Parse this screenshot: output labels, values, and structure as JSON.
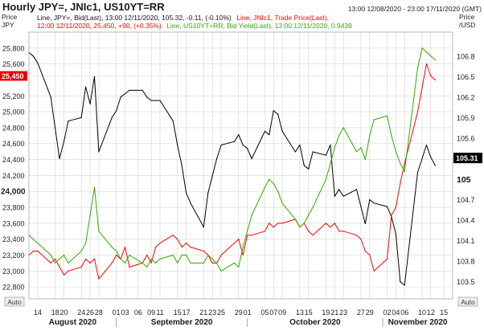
{
  "header": {
    "title": "Hourly JPY=, JNIc1, US10YT=RR",
    "date_range": "13:00 12/08/2020 - 23:00 17/11/2020 (GMT)"
  },
  "legend": {
    "row1_series1": "Line, JPY=, Bid(Last), 13:00 12/11/2020, 105.32, -0.11, (-0.10%)",
    "row1_series2": "Line, JNIc1, Trade Price(Last),",
    "row2_series2_values": "12:00 12/11/2020, 25,450, +90, (+0.35%)",
    "row2_series3": "Line, US10YT=RR, Bid Yield(Last), 13:00 12/11/2020, 0.9439"
  },
  "left_axis": {
    "header": "Price\nJPY",
    "ticks": [
      "25,800",
      "25,600",
      "25,450",
      "25,200",
      "25,000",
      "24,800",
      "24,600",
      "24,400",
      "24,200",
      "24,000",
      "23,800",
      "23,600",
      "23,400",
      "23,200",
      "23,000",
      "22,800"
    ],
    "highlight_label": "25,450",
    "bold_label": "24,000"
  },
  "right_axis": {
    "header": "Price\n/USD",
    "ticks": [
      "106.8",
      "106.5",
      "106.2",
      "105.9",
      "105.6",
      "104.7",
      "104.4",
      "104.1",
      "103.8",
      "103.5"
    ],
    "current_label": "105.31",
    "bold_label": "105"
  },
  "x_axis": {
    "day_ticks": [
      "14",
      "18",
      "20",
      "24",
      "26",
      "28",
      "01",
      "03",
      "06",
      "09",
      "11",
      "15",
      "17",
      "21",
      "23",
      "25",
      "29",
      "01",
      "05",
      "07",
      "09",
      "13",
      "15",
      "19",
      "21",
      "23",
      "27",
      "29",
      "02",
      "04",
      "06",
      "10",
      "12",
      "15"
    ],
    "months": [
      "August 2020",
      "September 2020",
      "October 2020",
      "November 2020"
    ],
    "auto_left": "Auto",
    "auto_right": "Auto"
  },
  "colors": {
    "jpy": "#000000",
    "nikkei": "#ff0000",
    "us10y": "#33aa00",
    "grid": "#d4d4d4",
    "current_label_bg": "#000000",
    "highlight_label_bg": "#e8000b"
  },
  "chart_data": {
    "type": "line",
    "title": "Hourly JPY=, JNIc1, US10YT=RR",
    "xlabel": "",
    "x_range": [
      "2020-08-12",
      "2020-11-17"
    ],
    "left_ylabel": "Price JPY",
    "left_ylim": [
      22650,
      26000
    ],
    "right_ylabel": "Price /USD",
    "right_ylim": [
      103.25,
      107.15
    ],
    "grid": true,
    "legend_position": "top-left",
    "series": [
      {
        "name": "JPY=",
        "axis": "right",
        "color": "#000000",
        "points": [
          [
            "2020-08-12",
            106.85
          ],
          [
            "2020-08-13",
            106.8
          ],
          [
            "2020-08-14",
            106.7
          ],
          [
            "2020-08-17",
            106.2
          ],
          [
            "2020-08-18",
            105.75
          ],
          [
            "2020-08-19",
            105.3
          ],
          [
            "2020-08-20",
            105.55
          ],
          [
            "2020-08-21",
            105.85
          ],
          [
            "2020-08-24",
            105.9
          ],
          [
            "2020-08-25",
            106.35
          ],
          [
            "2020-08-26",
            106.1
          ],
          [
            "2020-08-27",
            106.5
          ],
          [
            "2020-08-28",
            105.4
          ],
          [
            "2020-08-31",
            105.9
          ],
          [
            "2020-09-01",
            106.0
          ],
          [
            "2020-09-02",
            106.2
          ],
          [
            "2020-09-03",
            106.25
          ],
          [
            "2020-09-04",
            106.3
          ],
          [
            "2020-09-07",
            106.3
          ],
          [
            "2020-09-08",
            106.2
          ],
          [
            "2020-09-09",
            106.15
          ],
          [
            "2020-09-10",
            106.15
          ],
          [
            "2020-09-11",
            106.15
          ],
          [
            "2020-09-14",
            105.85
          ],
          [
            "2020-09-15",
            105.5
          ],
          [
            "2020-09-16",
            105.2
          ],
          [
            "2020-09-17",
            104.8
          ],
          [
            "2020-09-18",
            104.65
          ],
          [
            "2020-09-21",
            104.3
          ],
          [
            "2020-09-22",
            104.8
          ],
          [
            "2020-09-23",
            105.05
          ],
          [
            "2020-09-24",
            105.3
          ],
          [
            "2020-09-25",
            105.5
          ],
          [
            "2020-09-28",
            105.55
          ],
          [
            "2020-09-29",
            105.65
          ],
          [
            "2020-09-30",
            105.5
          ],
          [
            "2020-10-01",
            105.45
          ],
          [
            "2020-10-02",
            105.3
          ],
          [
            "2020-10-05",
            105.7
          ],
          [
            "2020-10-06",
            105.65
          ],
          [
            "2020-10-07",
            106.0
          ],
          [
            "2020-10-08",
            105.95
          ],
          [
            "2020-10-09",
            105.7
          ],
          [
            "2020-10-12",
            105.4
          ],
          [
            "2020-10-13",
            105.5
          ],
          [
            "2020-10-14",
            105.2
          ],
          [
            "2020-10-15",
            105.15
          ],
          [
            "2020-10-16",
            105.4
          ],
          [
            "2020-10-19",
            105.35
          ],
          [
            "2020-10-20",
            105.5
          ],
          [
            "2020-10-21",
            104.75
          ],
          [
            "2020-10-22",
            104.85
          ],
          [
            "2020-10-23",
            104.75
          ],
          [
            "2020-10-26",
            104.85
          ],
          [
            "2020-10-27",
            104.6
          ],
          [
            "2020-10-28",
            104.35
          ],
          [
            "2020-10-29",
            104.7
          ],
          [
            "2020-10-30",
            104.65
          ],
          [
            "2020-11-02",
            104.6
          ],
          [
            "2020-11-03",
            104.45
          ],
          [
            "2020-11-04",
            104.2
          ],
          [
            "2020-11-05",
            103.5
          ],
          [
            "2020-11-06",
            103.45
          ],
          [
            "2020-11-09",
            105.1
          ],
          [
            "2020-11-10",
            105.3
          ],
          [
            "2020-11-11",
            105.5
          ],
          [
            "2020-11-12",
            105.32
          ],
          [
            "2020-11-13",
            105.2
          ]
        ]
      },
      {
        "name": "JNIc1",
        "axis": "left",
        "color": "#ff0000",
        "points": [
          [
            "2020-08-12",
            23200
          ],
          [
            "2020-08-13",
            23250
          ],
          [
            "2020-08-14",
            23250
          ],
          [
            "2020-08-17",
            23100
          ],
          [
            "2020-08-18",
            23150
          ],
          [
            "2020-08-19",
            23050
          ],
          [
            "2020-08-20",
            22950
          ],
          [
            "2020-08-21",
            23000
          ],
          [
            "2020-08-24",
            23050
          ],
          [
            "2020-08-25",
            23150
          ],
          [
            "2020-08-26",
            23100
          ],
          [
            "2020-08-27",
            23150
          ],
          [
            "2020-08-28",
            22900
          ],
          [
            "2020-08-31",
            23100
          ],
          [
            "2020-09-01",
            23200
          ],
          [
            "2020-09-02",
            23150
          ],
          [
            "2020-09-03",
            23300
          ],
          [
            "2020-09-04",
            23050
          ],
          [
            "2020-09-07",
            23100
          ],
          [
            "2020-09-08",
            23200
          ],
          [
            "2020-09-09",
            23100
          ],
          [
            "2020-09-10",
            23300
          ],
          [
            "2020-09-11",
            23350
          ],
          [
            "2020-09-14",
            23450
          ],
          [
            "2020-09-15",
            23400
          ],
          [
            "2020-09-16",
            23300
          ],
          [
            "2020-09-17",
            23350
          ],
          [
            "2020-09-18",
            23300
          ],
          [
            "2020-09-21",
            23250
          ],
          [
            "2020-09-22",
            23200
          ],
          [
            "2020-09-23",
            23100
          ],
          [
            "2020-09-24",
            23100
          ],
          [
            "2020-09-25",
            23200
          ],
          [
            "2020-09-28",
            23350
          ],
          [
            "2020-09-29",
            23400
          ],
          [
            "2020-09-30",
            23200
          ],
          [
            "2020-10-01",
            23450
          ],
          [
            "2020-10-02",
            23450
          ],
          [
            "2020-10-05",
            23500
          ],
          [
            "2020-10-06",
            23600
          ],
          [
            "2020-10-07",
            23550
          ],
          [
            "2020-10-08",
            23600
          ],
          [
            "2020-10-09",
            23600
          ],
          [
            "2020-10-12",
            23650
          ],
          [
            "2020-10-13",
            23550
          ],
          [
            "2020-10-14",
            23600
          ],
          [
            "2020-10-15",
            23500
          ],
          [
            "2020-10-16",
            23450
          ],
          [
            "2020-10-19",
            23600
          ],
          [
            "2020-10-20",
            23550
          ],
          [
            "2020-10-21",
            23600
          ],
          [
            "2020-10-22",
            23500
          ],
          [
            "2020-10-23",
            23500
          ],
          [
            "2020-10-26",
            23450
          ],
          [
            "2020-10-27",
            23400
          ],
          [
            "2020-10-28",
            23250
          ],
          [
            "2020-10-29",
            23200
          ],
          [
            "2020-10-30",
            23000
          ],
          [
            "2020-11-02",
            23150
          ],
          [
            "2020-11-03",
            23700
          ],
          [
            "2020-11-04",
            23800
          ],
          [
            "2020-11-05",
            24100
          ],
          [
            "2020-11-06",
            24350
          ],
          [
            "2020-11-09",
            25000
          ],
          [
            "2020-11-10",
            25300
          ],
          [
            "2020-11-11",
            25600
          ],
          [
            "2020-11-12",
            25450
          ],
          [
            "2020-11-13",
            25400
          ]
        ]
      },
      {
        "name": "US10YT=RR",
        "axis": "left",
        "color": "#33aa00",
        "points": [
          [
            "2020-08-12",
            23450
          ],
          [
            "2020-08-13",
            23400
          ],
          [
            "2020-08-14",
            23350
          ],
          [
            "2020-08-17",
            23200
          ],
          [
            "2020-08-18",
            23100
          ],
          [
            "2020-08-19",
            23150
          ],
          [
            "2020-08-20",
            23200
          ],
          [
            "2020-08-21",
            23100
          ],
          [
            "2020-08-24",
            23250
          ],
          [
            "2020-08-25",
            23350
          ],
          [
            "2020-08-26",
            23700
          ],
          [
            "2020-08-27",
            24050
          ],
          [
            "2020-08-28",
            23500
          ],
          [
            "2020-08-31",
            23300
          ],
          [
            "2020-09-01",
            23250
          ],
          [
            "2020-09-02",
            23150
          ],
          [
            "2020-09-03",
            23100
          ],
          [
            "2020-09-04",
            23200
          ],
          [
            "2020-09-07",
            23100
          ],
          [
            "2020-09-08",
            23050
          ],
          [
            "2020-09-09",
            23150
          ],
          [
            "2020-09-10",
            23100
          ],
          [
            "2020-09-11",
            23150
          ],
          [
            "2020-09-14",
            23200
          ],
          [
            "2020-09-15",
            23100
          ],
          [
            "2020-09-16",
            23200
          ],
          [
            "2020-09-17",
            23200
          ],
          [
            "2020-09-18",
            23100
          ],
          [
            "2020-09-21",
            23100
          ],
          [
            "2020-09-22",
            23200
          ],
          [
            "2020-09-23",
            23150
          ],
          [
            "2020-09-24",
            23100
          ],
          [
            "2020-09-25",
            23000
          ],
          [
            "2020-09-28",
            23100
          ],
          [
            "2020-09-29",
            23050
          ],
          [
            "2020-09-30",
            23300
          ],
          [
            "2020-10-01",
            23500
          ],
          [
            "2020-10-02",
            23700
          ],
          [
            "2020-10-05",
            24050
          ],
          [
            "2020-10-06",
            24150
          ],
          [
            "2020-10-07",
            24100
          ],
          [
            "2020-10-08",
            24000
          ],
          [
            "2020-10-09",
            23850
          ],
          [
            "2020-10-12",
            23650
          ],
          [
            "2020-10-13",
            23550
          ],
          [
            "2020-10-14",
            23600
          ],
          [
            "2020-10-15",
            23700
          ],
          [
            "2020-10-16",
            23800
          ],
          [
            "2020-10-19",
            24150
          ],
          [
            "2020-10-20",
            24350
          ],
          [
            "2020-10-21",
            24550
          ],
          [
            "2020-10-22",
            24700
          ],
          [
            "2020-10-23",
            24800
          ],
          [
            "2020-10-26",
            24500
          ],
          [
            "2020-10-27",
            24550
          ],
          [
            "2020-10-28",
            24400
          ],
          [
            "2020-10-29",
            24700
          ],
          [
            "2020-10-30",
            24900
          ],
          [
            "2020-11-02",
            24950
          ],
          [
            "2020-11-03",
            24700
          ],
          [
            "2020-11-04",
            24500
          ],
          [
            "2020-11-05",
            24350
          ],
          [
            "2020-11-06",
            24250
          ],
          [
            "2020-11-09",
            25550
          ],
          [
            "2020-11-10",
            25800
          ],
          [
            "2020-11-11",
            25750
          ],
          [
            "2020-11-12",
            25700
          ],
          [
            "2020-11-13",
            25650
          ]
        ]
      }
    ]
  }
}
